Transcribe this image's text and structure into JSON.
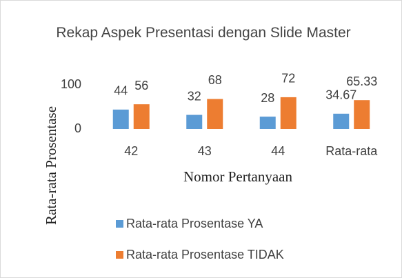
{
  "chart_data": {
    "type": "bar",
    "title": "Rekap Aspek Presentasi dengan Slide Master",
    "xlabel": "Nomor Pertanyaan",
    "ylabel": "Rata-rata Prosentase",
    "categories": [
      "42",
      "43",
      "44",
      "Rata-rata"
    ],
    "series": [
      {
        "name": "Rata-rata Prosentase YA",
        "color": "#5b9bd5",
        "values": [
          44,
          32,
          28,
          34.67
        ]
      },
      {
        "name": "Rata-rata Prosentase TIDAK",
        "color": "#ed7d31",
        "values": [
          56,
          68,
          72,
          65.33
        ]
      }
    ],
    "ylim": [
      0,
      100
    ],
    "yticks": [
      0,
      100
    ],
    "grid": false,
    "legend": "bottom"
  }
}
